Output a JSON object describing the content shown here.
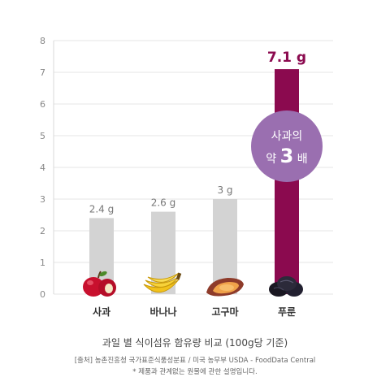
{
  "chart_data": {
    "type": "bar",
    "categories": [
      "사과",
      "바나나",
      "고구마",
      "푸룬"
    ],
    "values": [
      2.4,
      2.6,
      3,
      7.1
    ],
    "value_labels": [
      "2.4 g",
      "2.6 g",
      "3 g",
      "7.1 g"
    ],
    "yticks": [
      "0",
      "1",
      "2",
      "3",
      "4",
      "5",
      "6",
      "7",
      "8"
    ],
    "ylim": [
      0,
      8
    ],
    "grid": true,
    "colors": {
      "bar_default": "#d3d3d3",
      "bar_highlight": "#8b0a4f",
      "badge": "#9a6fb0",
      "highlight_label": "#8b0a4f",
      "value_label": "#777777",
      "axis_label": "#888888"
    },
    "badge": {
      "line1": "사과의",
      "line2_prefix": "약",
      "line2_number": "3",
      "line2_suffix": "배"
    },
    "icons": [
      "apple-icon",
      "banana-icon",
      "sweet-potato-icon",
      "prune-icon"
    ]
  },
  "captions": {
    "title": "과일 별 식이섬유 함유량 비교 (100g당 기준)",
    "source": "[출처] 농촌진흥청 국가표준식품성분표 / 미국 농무부 USDA - FoodData Central",
    "note": "* 제품과 관계없는 원물에 관한 설명입니다."
  }
}
